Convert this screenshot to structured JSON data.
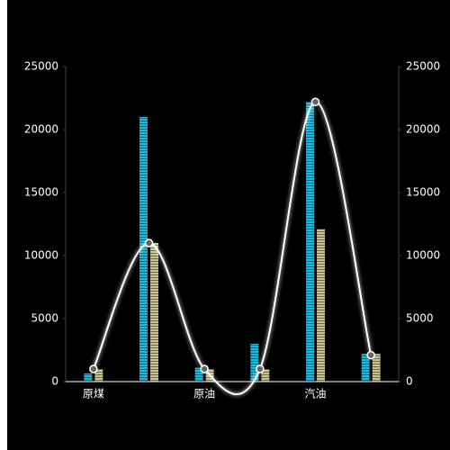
{
  "chart_data": {
    "type": "bar",
    "categories": [
      "原煤",
      null,
      "原油",
      null,
      "汽油",
      null
    ],
    "series": [
      {
        "type": "bar",
        "color": "#1ab8dc",
        "values": [
          650,
          21000,
          1100,
          3000,
          22200,
          2200
        ]
      },
      {
        "type": "bar",
        "color": "#c9c28f",
        "values": [
          1000,
          11000,
          1000,
          1000,
          12100,
          2200
        ]
      },
      {
        "type": "line",
        "axis": "y2",
        "color": "#ffffff",
        "smooth": true,
        "values": [
          1000,
          11000,
          1000,
          1000,
          22200,
          2100
        ]
      }
    ],
    "ylim": [
      0,
      25000
    ],
    "yticks": [
      0,
      5000,
      10000,
      15000,
      20000,
      25000
    ],
    "y2lim": [
      0,
      25000
    ],
    "y2ticks": [
      0,
      5000,
      10000,
      15000,
      20000,
      25000
    ],
    "grid": false
  }
}
